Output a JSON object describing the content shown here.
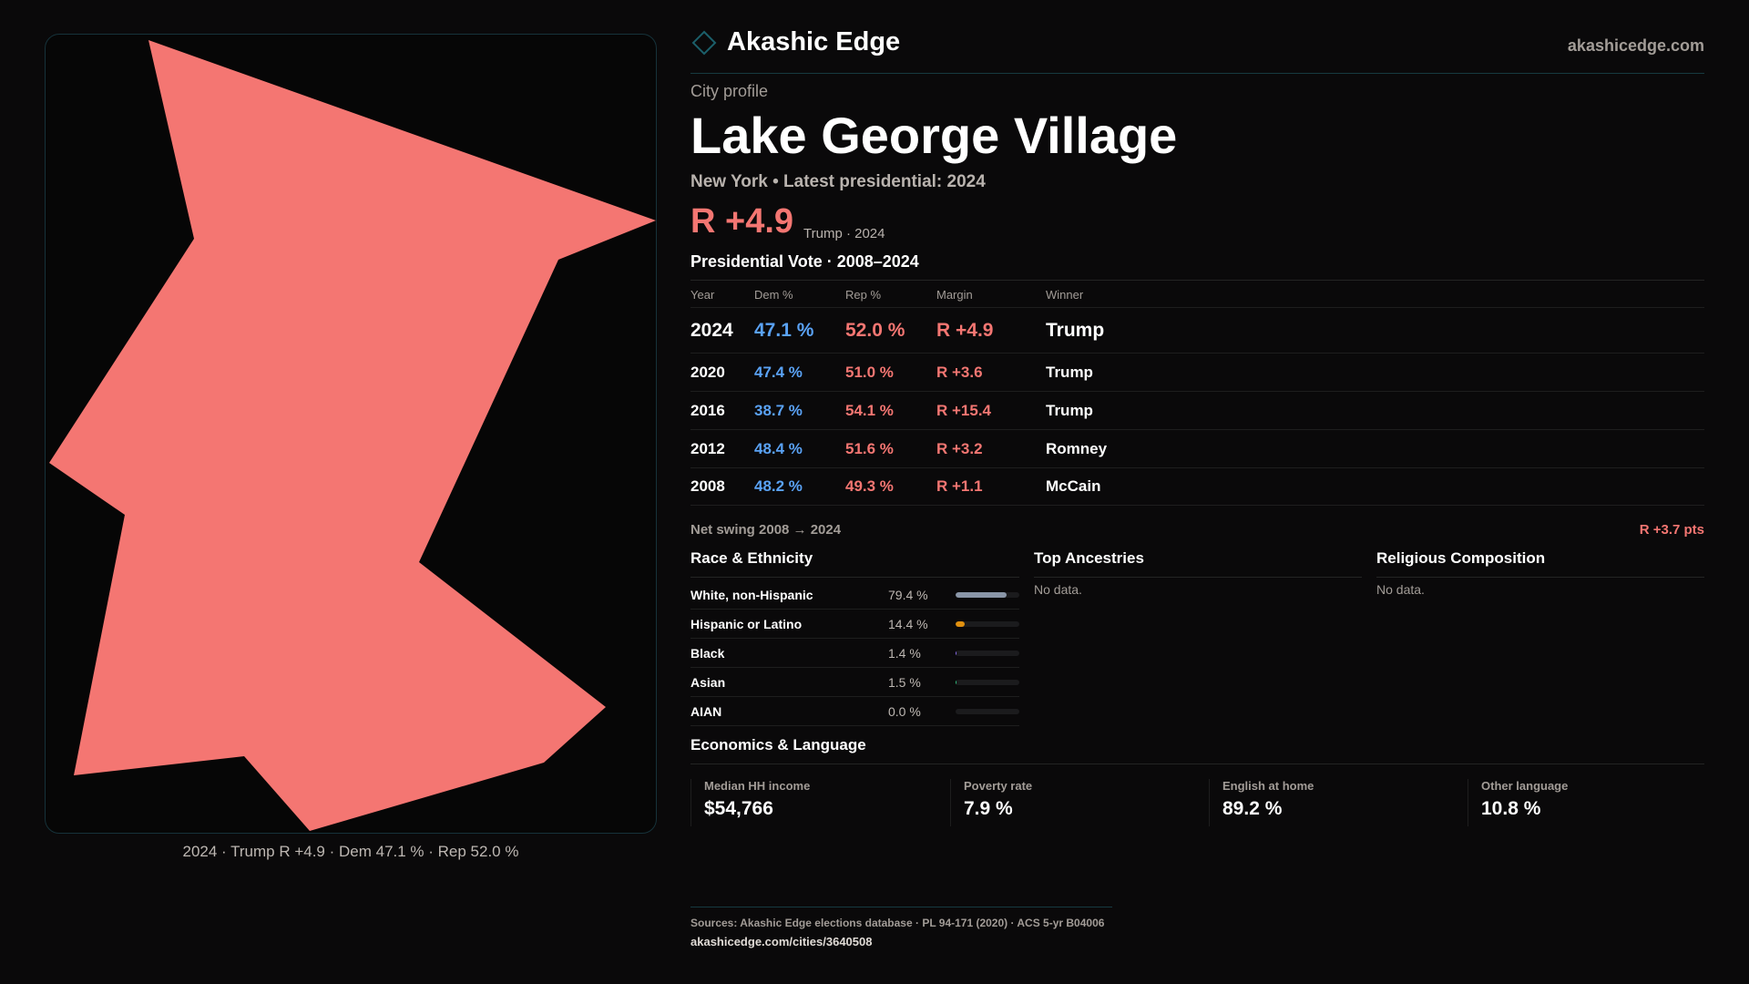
{
  "map": {
    "caption": "2024 · Trump R +4.9 · Dem 47.1 % · Rep 52.0 %",
    "fill_color": "#f47672"
  },
  "header": {
    "brand": "Akashic Edge",
    "site": "akashicedge.com"
  },
  "profile": {
    "kicker": "City profile",
    "title": "Lake George Village",
    "subtitle": "New York • Latest presidential: 2024",
    "margin": "R +4.9",
    "margin_sub": "Trump · 2024"
  },
  "votes": {
    "heading": "Presidential Vote · 2008–2024",
    "columns": [
      "Year",
      "Dem %",
      "Rep %",
      "Margin",
      "Winner"
    ],
    "rows": [
      {
        "year": "2024",
        "dem": "47.1 %",
        "rep": "52.0 %",
        "margin": "R +4.9",
        "winner": "Trump"
      },
      {
        "year": "2020",
        "dem": "47.4 %",
        "rep": "51.0 %",
        "margin": "R +3.6",
        "winner": "Trump"
      },
      {
        "year": "2016",
        "dem": "38.7 %",
        "rep": "54.1 %",
        "margin": "R +15.4",
        "winner": "Trump"
      },
      {
        "year": "2012",
        "dem": "48.4 %",
        "rep": "51.6 %",
        "margin": "R +3.2",
        "winner": "Romney"
      },
      {
        "year": "2008",
        "dem": "48.2 %",
        "rep": "49.3 %",
        "margin": "R +1.1",
        "winner": "McCain"
      }
    ],
    "swing_label": "Net swing 2008 → 2024",
    "swing_value": "R +3.7 pts"
  },
  "race": {
    "heading": "Race & Ethnicity",
    "items": [
      {
        "label": "White, non-Hispanic",
        "pct": "79.4 %",
        "value": 79.4,
        "color": "#8a96a8"
      },
      {
        "label": "Hispanic or Latino",
        "pct": "14.4 %",
        "value": 14.4,
        "color": "#e0900f"
      },
      {
        "label": "Black",
        "pct": "1.4 %",
        "value": 1.4,
        "color": "#8b6cf0"
      },
      {
        "label": "Asian",
        "pct": "1.5 %",
        "value": 1.5,
        "color": "#2fbf80"
      },
      {
        "label": "AIAN",
        "pct": "0.0 %",
        "value": 0,
        "color": "#888888"
      }
    ]
  },
  "ancestries": {
    "heading": "Top Ancestries",
    "empty": "No data."
  },
  "religion": {
    "heading": "Religious Composition",
    "empty": "No data."
  },
  "econ": {
    "heading": "Economics & Language",
    "cards": [
      {
        "label": "Median HH income",
        "value": "$54,766"
      },
      {
        "label": "Poverty rate",
        "value": "7.9 %"
      },
      {
        "label": "English at home",
        "value": "89.2 %"
      },
      {
        "label": "Other language",
        "value": "10.8 %"
      }
    ]
  },
  "footer": {
    "sources": "Sources: Akashic Edge elections database · PL 94-171 (2020) · ACS 5-yr B04006",
    "url": "akashicedge.com/cities/3640508"
  }
}
